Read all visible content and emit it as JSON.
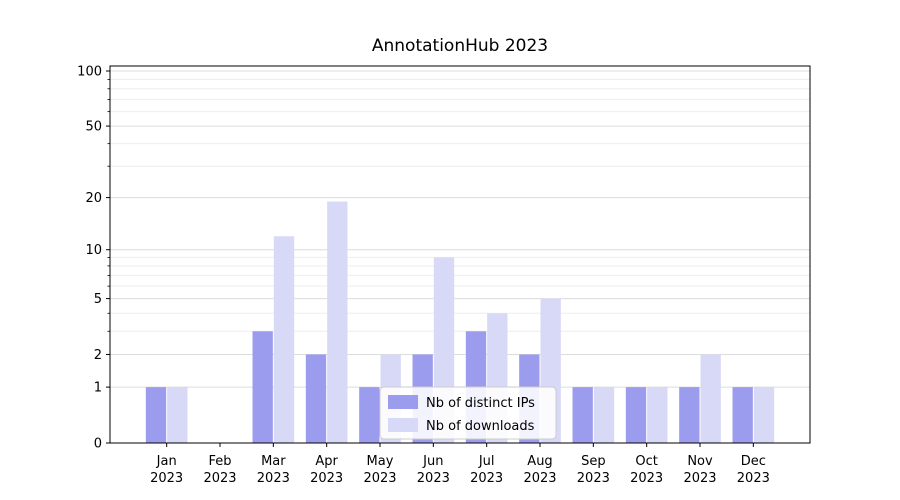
{
  "chart_data": {
    "type": "bar",
    "title": "AnnotationHub 2023",
    "yscale": "log1p",
    "grid": true,
    "legend_position": "lower center",
    "categories": [
      "Jan 2023",
      "Feb 2023",
      "Mar 2023",
      "Apr 2023",
      "May 2023",
      "Jun 2023",
      "Jul 2023",
      "Aug 2023",
      "Sep 2023",
      "Oct 2023",
      "Nov 2023",
      "Dec 2023"
    ],
    "series": [
      {
        "name": "Nb of distinct IPs",
        "color": "#9c9cee",
        "values": [
          1,
          0,
          3,
          2,
          1,
          2,
          3,
          2,
          1,
          1,
          1,
          1
        ]
      },
      {
        "name": "Nb of downloads",
        "color": "#d8d8f7",
        "values": [
          1,
          0,
          12,
          19,
          2,
          9,
          4,
          5,
          1,
          1,
          2,
          1
        ]
      }
    ],
    "yticks": [
      0,
      1,
      2,
      5,
      10,
      20,
      50,
      100
    ],
    "minor_yticks": [
      3,
      4,
      6,
      7,
      8,
      9,
      30,
      40,
      60,
      70,
      80,
      90
    ],
    "ylim": [
      0,
      107
    ],
    "colors": {
      "axis": "#000000",
      "major_grid": "#dcdcdc",
      "minor_grid": "#ededed",
      "legend_border": "#cccccc",
      "legend_bg": "#ffffff"
    }
  }
}
